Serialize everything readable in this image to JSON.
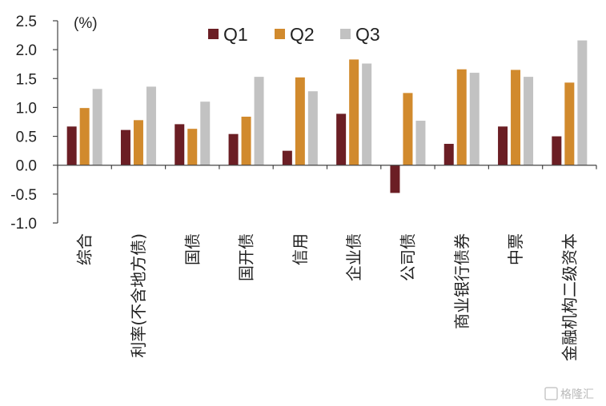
{
  "chart_data": {
    "type": "bar",
    "unit_label": "(%)",
    "categories": [
      "综合",
      "利率(不含地方债)",
      "国债",
      "国开债",
      "信用",
      "企业债",
      "公司债",
      "商业银行债券",
      "中票",
      "金融机构二级资本"
    ],
    "series": [
      {
        "name": "Q1",
        "color": "#6b1e24",
        "values": [
          0.67,
          0.61,
          0.71,
          0.54,
          0.25,
          0.89,
          -0.48,
          0.37,
          0.67,
          0.5
        ]
      },
      {
        "name": "Q2",
        "color": "#d18a2d",
        "values": [
          0.99,
          0.78,
          0.63,
          0.84,
          1.52,
          1.83,
          1.25,
          1.66,
          1.65,
          1.43
        ]
      },
      {
        "name": "Q3",
        "color": "#c2c2c2",
        "values": [
          1.32,
          1.36,
          1.1,
          1.53,
          1.28,
          1.76,
          0.77,
          1.6,
          1.53,
          2.16
        ]
      }
    ],
    "yticks": [
      "2.5",
      "2.0",
      "1.5",
      "1.0",
      "0.5",
      "0.0",
      "-0.5",
      "-1.0"
    ],
    "ylim": [
      -1.0,
      2.5
    ],
    "legend_position": "top",
    "grid": false
  },
  "watermark": "格隆汇"
}
